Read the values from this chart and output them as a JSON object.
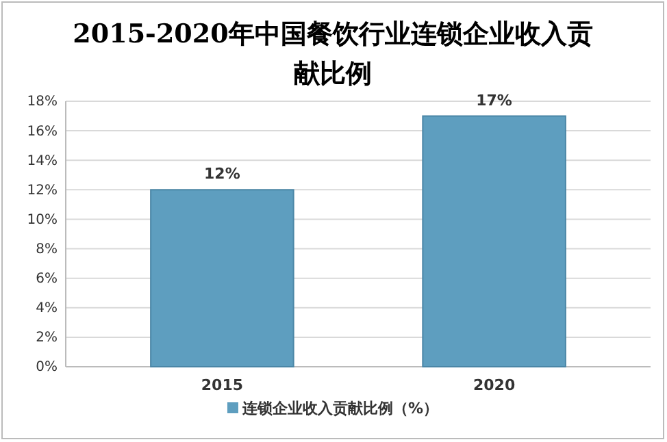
{
  "chart_data": {
    "type": "bar",
    "title": "2015-2020年中国餐饮行业连锁企业收入贡献比例",
    "categories": [
      "2015",
      "2020"
    ],
    "series": [
      {
        "name": "连锁企业收入贡献比例（%）",
        "color": "#5e9ebf",
        "values": [
          12,
          17
        ],
        "value_labels": [
          "12%",
          "17%"
        ]
      }
    ],
    "ylim": [
      0,
      18
    ],
    "yticks": [
      {
        "value": 0,
        "label": "0%"
      },
      {
        "value": 2,
        "label": "2%"
      },
      {
        "value": 4,
        "label": "4%"
      },
      {
        "value": 6,
        "label": "6%"
      },
      {
        "value": 8,
        "label": "8%"
      },
      {
        "value": 10,
        "label": "10%"
      },
      {
        "value": 12,
        "label": "12%"
      },
      {
        "value": 14,
        "label": "14%"
      },
      {
        "value": 16,
        "label": "16%"
      },
      {
        "value": 18,
        "label": "18%"
      }
    ],
    "grid": "y",
    "legend": "bottom"
  }
}
